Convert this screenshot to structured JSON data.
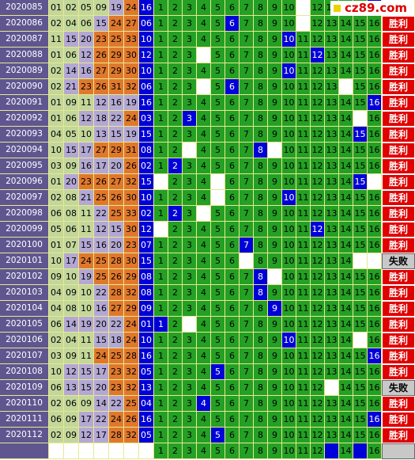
{
  "logo": "cz89.com",
  "columns": [
    1,
    2,
    3,
    4,
    5,
    6,
    7,
    8,
    9,
    10,
    11,
    12,
    13,
    14,
    15,
    16
  ],
  "rows": [
    {
      "issue": "2020085",
      "reds": [
        "01",
        "02",
        "05",
        "09",
        "19",
        "24"
      ],
      "blue": "16",
      "kills": [
        11
      ],
      "result": ""
    },
    {
      "issue": "2020086",
      "reds": [
        "02",
        "04",
        "06",
        "15",
        "24",
        "27"
      ],
      "blue": "06",
      "kills": [
        11
      ],
      "result": "胜利"
    },
    {
      "issue": "2020087",
      "reds": [
        "11",
        "15",
        "20",
        "23",
        "25",
        "33"
      ],
      "blue": "10",
      "kills": [],
      "result": "胜利"
    },
    {
      "issue": "2020088",
      "reds": [
        "01",
        "06",
        "12",
        "26",
        "29",
        "30"
      ],
      "blue": "12",
      "kills": [
        4
      ],
      "result": "胜利"
    },
    {
      "issue": "2020089",
      "reds": [
        "02",
        "14",
        "16",
        "27",
        "29",
        "30"
      ],
      "blue": "10",
      "kills": [],
      "result": "胜利"
    },
    {
      "issue": "2020090",
      "reds": [
        "02",
        "21",
        "23",
        "26",
        "31",
        "32"
      ],
      "blue": "06",
      "kills": [
        4,
        14
      ],
      "result": "胜利"
    },
    {
      "issue": "2020091",
      "reds": [
        "01",
        "09",
        "11",
        "12",
        "16",
        "19"
      ],
      "blue": "16",
      "kills": [],
      "result": "胜利"
    },
    {
      "issue": "2020092",
      "reds": [
        "01",
        "06",
        "12",
        "18",
        "22",
        "24"
      ],
      "blue": "03",
      "kills": [
        15
      ],
      "result": "胜利"
    },
    {
      "issue": "2020093",
      "reds": [
        "04",
        "05",
        "10",
        "13",
        "15",
        "19"
      ],
      "blue": "15",
      "kills": [],
      "result": "胜利"
    },
    {
      "issue": "2020094",
      "reds": [
        "10",
        "15",
        "17",
        "27",
        "29",
        "31"
      ],
      "blue": "08",
      "kills": [
        3,
        9
      ],
      "result": "胜利"
    },
    {
      "issue": "2020095",
      "reds": [
        "03",
        "09",
        "16",
        "17",
        "20",
        "26"
      ],
      "blue": "02",
      "kills": [],
      "result": "胜利"
    },
    {
      "issue": "2020096",
      "reds": [
        "01",
        "20",
        "23",
        "26",
        "27",
        "32"
      ],
      "blue": "15",
      "kills": [
        1,
        5,
        16
      ],
      "result": "胜利"
    },
    {
      "issue": "2020097",
      "reds": [
        "02",
        "08",
        "21",
        "25",
        "26",
        "30"
      ],
      "blue": "10",
      "kills": [
        5
      ],
      "result": "胜利"
    },
    {
      "issue": "2020098",
      "reds": [
        "06",
        "08",
        "11",
        "22",
        "25",
        "33"
      ],
      "blue": "02",
      "kills": [
        4
      ],
      "result": "胜利"
    },
    {
      "issue": "2020099",
      "reds": [
        "05",
        "06",
        "11",
        "12",
        "15",
        "30"
      ],
      "blue": "12",
      "kills": [
        1
      ],
      "result": "胜利"
    },
    {
      "issue": "2020100",
      "reds": [
        "01",
        "07",
        "15",
        "16",
        "20",
        "23"
      ],
      "blue": "07",
      "kills": [],
      "result": "胜利"
    },
    {
      "issue": "2020101",
      "reds": [
        "10",
        "17",
        "24",
        "25",
        "28",
        "30"
      ],
      "blue": "15",
      "kills": [
        7,
        15,
        16
      ],
      "result": "失败"
    },
    {
      "issue": "2020102",
      "reds": [
        "09",
        "10",
        "19",
        "25",
        "26",
        "29"
      ],
      "blue": "08",
      "kills": [
        9
      ],
      "result": "胜利"
    },
    {
      "issue": "2020103",
      "reds": [
        "04",
        "09",
        "10",
        "22",
        "28",
        "32"
      ],
      "blue": "08",
      "kills": [],
      "result": "胜利"
    },
    {
      "issue": "2020104",
      "reds": [
        "04",
        "08",
        "10",
        "16",
        "27",
        "29"
      ],
      "blue": "09",
      "kills": [],
      "result": "胜利"
    },
    {
      "issue": "2020105",
      "reds": [
        "06",
        "14",
        "19",
        "20",
        "22",
        "24"
      ],
      "blue": "01",
      "kills": [
        3
      ],
      "result": "胜利"
    },
    {
      "issue": "2020106",
      "reds": [
        "02",
        "04",
        "11",
        "15",
        "18",
        "24"
      ],
      "blue": "10",
      "kills": [
        15
      ],
      "result": "胜利"
    },
    {
      "issue": "2020107",
      "reds": [
        "03",
        "09",
        "11",
        "24",
        "25",
        "28"
      ],
      "blue": "16",
      "kills": [],
      "result": "胜利"
    },
    {
      "issue": "2020108",
      "reds": [
        "10",
        "12",
        "15",
        "17",
        "23",
        "32"
      ],
      "blue": "05",
      "kills": [],
      "result": "胜利"
    },
    {
      "issue": "2020109",
      "reds": [
        "06",
        "13",
        "15",
        "20",
        "23",
        "32"
      ],
      "blue": "13",
      "kills": [
        13
      ],
      "result": "失败"
    },
    {
      "issue": "2020110",
      "reds": [
        "02",
        "06",
        "09",
        "14",
        "22",
        "25"
      ],
      "blue": "04",
      "kills": [],
      "result": "胜利"
    },
    {
      "issue": "2020111",
      "reds": [
        "06",
        "09",
        "17",
        "22",
        "24",
        "26"
      ],
      "blue": "16",
      "kills": [],
      "result": "胜利"
    },
    {
      "issue": "2020112",
      "reds": [
        "02",
        "09",
        "12",
        "17",
        "28",
        "32"
      ],
      "blue": "05",
      "kills": [],
      "result": "胜利"
    }
  ],
  "next": {
    "kills": [
      13,
      15
    ]
  }
}
